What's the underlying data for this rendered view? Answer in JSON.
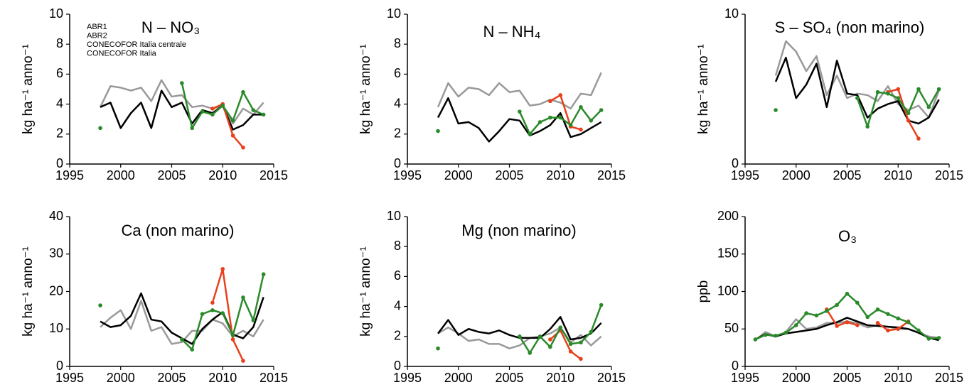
{
  "chart_data": [
    {
      "type": "line",
      "title": "N – NO₃",
      "y_label": "kg ha⁻¹ anno⁻¹",
      "legend": true,
      "x": [
        1998,
        1999,
        2000,
        2001,
        2002,
        2003,
        2004,
        2005,
        2006,
        2007,
        2008,
        2009,
        2010,
        2011,
        2012,
        2013,
        2014
      ],
      "xlim": [
        1995,
        2015
      ],
      "xticks": [
        1995,
        2000,
        2005,
        2010,
        2015
      ],
      "ylim": [
        0,
        10
      ],
      "yticks": [
        0,
        2,
        4,
        6,
        8,
        10
      ],
      "series": [
        {
          "name": "ABR1",
          "color": "#2a8a2a",
          "markers": true,
          "values": [
            2.4,
            null,
            null,
            null,
            null,
            null,
            null,
            null,
            5.4,
            2.4,
            3.5,
            3.3,
            3.9,
            2.9,
            4.8,
            3.6,
            3.3
          ]
        },
        {
          "name": "ABR2",
          "color": "#e8401c",
          "markers": true,
          "values": [
            null,
            null,
            null,
            null,
            null,
            null,
            null,
            null,
            null,
            null,
            null,
            3.7,
            4.0,
            1.9,
            1.1,
            null,
            null
          ]
        },
        {
          "name": "CONECOFOR Italia centrale",
          "color": "#000000",
          "values": [
            3.8,
            4.1,
            2.4,
            3.4,
            4.1,
            2.4,
            4.9,
            3.8,
            4.1,
            2.7,
            3.6,
            3.4,
            3.9,
            2.3,
            2.6,
            3.3,
            3.3
          ]
        },
        {
          "name": "CONECOFOR Italia",
          "color": "#999999",
          "values": [
            3.8,
            5.2,
            5.1,
            4.9,
            5.1,
            4.2,
            5.6,
            4.5,
            4.6,
            3.8,
            3.9,
            3.7,
            3.9,
            2.7,
            3.7,
            3.3,
            4.1
          ]
        }
      ]
    },
    {
      "type": "line",
      "title": "N – NH₄",
      "y_label": "kg ha⁻¹ anno⁻¹",
      "x": [
        1998,
        1999,
        2000,
        2001,
        2002,
        2003,
        2004,
        2005,
        2006,
        2007,
        2008,
        2009,
        2010,
        2011,
        2012,
        2013,
        2014
      ],
      "xlim": [
        1995,
        2015
      ],
      "xticks": [
        1995,
        2000,
        2005,
        2010,
        2015
      ],
      "ylim": [
        0,
        10
      ],
      "yticks": [
        0,
        2,
        4,
        6,
        8,
        10
      ],
      "series": [
        {
          "color": "#2a8a2a",
          "markers": true,
          "values": [
            2.2,
            null,
            null,
            null,
            null,
            null,
            null,
            null,
            3.5,
            2.0,
            2.8,
            3.1,
            3.1,
            2.6,
            3.8,
            2.9,
            3.6
          ]
        },
        {
          "color": "#e8401c",
          "markers": true,
          "values": [
            null,
            null,
            null,
            null,
            null,
            null,
            null,
            null,
            null,
            null,
            null,
            4.2,
            4.6,
            2.5,
            2.3,
            null,
            null
          ]
        },
        {
          "color": "#000000",
          "values": [
            3.1,
            4.4,
            2.7,
            2.8,
            2.4,
            1.5,
            2.2,
            3.0,
            2.9,
            1.9,
            2.2,
            2.6,
            3.4,
            1.8,
            2.0,
            2.4,
            2.8
          ]
        },
        {
          "color": "#999999",
          "values": [
            3.8,
            5.4,
            4.5,
            5.1,
            5.0,
            4.6,
            5.4,
            4.8,
            4.9,
            3.9,
            4.0,
            4.3,
            4.1,
            3.7,
            4.7,
            4.6,
            6.1
          ]
        }
      ]
    },
    {
      "type": "line",
      "title": "S – SO₄ (non marino)",
      "y_label": "kg ha⁻¹ anno⁻¹",
      "x": [
        1998,
        1999,
        2000,
        2001,
        2002,
        2003,
        2004,
        2005,
        2006,
        2007,
        2008,
        2009,
        2010,
        2011,
        2012,
        2013,
        2014
      ],
      "xlim": [
        1995,
        2015
      ],
      "xticks": [
        1995,
        2000,
        2005,
        2010,
        2015
      ],
      "ylim": [
        0,
        10
      ],
      "yticks": [
        0,
        10
      ],
      "series": [
        {
          "color": "#2a8a2a",
          "markers": true,
          "values": [
            3.6,
            null,
            null,
            null,
            null,
            null,
            null,
            null,
            4.4,
            2.5,
            4.8,
            4.7,
            4.4,
            3.4,
            5.0,
            3.8,
            5.0
          ]
        },
        {
          "color": "#e8401c",
          "markers": true,
          "values": [
            null,
            null,
            null,
            null,
            null,
            null,
            null,
            null,
            null,
            null,
            null,
            4.8,
            5.0,
            2.9,
            1.7,
            null,
            null
          ]
        },
        {
          "color": "#000000",
          "values": [
            5.5,
            7.1,
            4.4,
            5.3,
            6.7,
            3.8,
            6.9,
            4.7,
            4.6,
            3.1,
            3.7,
            4.0,
            4.2,
            2.9,
            2.7,
            3.1,
            4.3
          ]
        },
        {
          "color": "#999999",
          "values": [
            5.9,
            8.2,
            7.5,
            6.2,
            7.2,
            4.6,
            5.9,
            4.4,
            4.7,
            4.6,
            4.2,
            5.2,
            4.0,
            3.6,
            3.9,
            3.1,
            4.9
          ]
        }
      ]
    },
    {
      "type": "line",
      "title": "Ca (non marino)",
      "y_label": "kg ha⁻¹ anno⁻¹",
      "x": [
        1998,
        1999,
        2000,
        2001,
        2002,
        2003,
        2004,
        2005,
        2006,
        2007,
        2008,
        2009,
        2010,
        2011,
        2012,
        2013,
        2014
      ],
      "xlim": [
        1995,
        2015
      ],
      "xticks": [
        1995,
        2000,
        2005,
        2010,
        2015
      ],
      "ylim": [
        0,
        40
      ],
      "yticks": [
        0,
        10,
        20,
        30,
        40
      ],
      "series": [
        {
          "color": "#2a8a2a",
          "markers": true,
          "values": [
            16.3,
            null,
            null,
            null,
            null,
            null,
            null,
            null,
            7.2,
            4.5,
            14,
            15,
            14.2,
            8.3,
            18.4,
            12.3,
            24.6
          ]
        },
        {
          "color": "#e8401c",
          "markers": true,
          "values": [
            null,
            null,
            null,
            null,
            null,
            null,
            null,
            null,
            null,
            null,
            null,
            17,
            26,
            7.2,
            1.5,
            null,
            null
          ]
        },
        {
          "color": "#000000",
          "values": [
            12,
            10.5,
            11,
            13.5,
            19.5,
            12.5,
            12,
            9,
            7.5,
            6,
            10,
            12.5,
            14.5,
            8.5,
            7.5,
            10.5,
            18.5
          ]
        },
        {
          "color": "#999999",
          "values": [
            10.5,
            13,
            15,
            10,
            17.5,
            9.5,
            10.5,
            6,
            6.5,
            9.5,
            9.5,
            12.5,
            11.5,
            8,
            9.5,
            8,
            12.5
          ]
        }
      ]
    },
    {
      "type": "line",
      "title": "Mg (non marino)",
      "y_label": "kg ha⁻¹ anno⁻¹",
      "x": [
        1998,
        1999,
        2000,
        2001,
        2002,
        2003,
        2004,
        2005,
        2006,
        2007,
        2008,
        2009,
        2010,
        2011,
        2012,
        2013,
        2014
      ],
      "xlim": [
        1995,
        2015
      ],
      "xticks": [
        1995,
        2000,
        2005,
        2010,
        2015
      ],
      "ylim": [
        0,
        10
      ],
      "yticks": [
        0,
        2,
        4,
        6,
        8,
        10
      ],
      "series": [
        {
          "color": "#2a8a2a",
          "markers": true,
          "values": [
            1.2,
            null,
            null,
            null,
            null,
            null,
            null,
            null,
            2.0,
            0.9,
            2.0,
            1.3,
            2.6,
            1.5,
            1.6,
            2.3,
            4.1
          ]
        },
        {
          "color": "#e8401c",
          "markers": true,
          "values": [
            null,
            null,
            null,
            null,
            null,
            null,
            null,
            null,
            null,
            null,
            null,
            1.8,
            2.4,
            1.0,
            0.5,
            null,
            null
          ]
        },
        {
          "color": "#000000",
          "values": [
            2.2,
            3.1,
            2.1,
            2.5,
            2.3,
            2.2,
            2.4,
            2.1,
            1.9,
            1.9,
            1.9,
            2.5,
            3.3,
            1.8,
            1.9,
            2.2,
            2.9
          ]
        },
        {
          "color": "#999999",
          "values": [
            2.2,
            2.6,
            2.2,
            1.7,
            1.8,
            1.5,
            1.5,
            1.2,
            1.4,
            1.9,
            2.0,
            2.2,
            2.6,
            1.6,
            2.1,
            1.4,
            2.0
          ]
        }
      ]
    },
    {
      "type": "line",
      "title": "O₃",
      "y_label": "ppb",
      "x": [
        1996,
        1997,
        1998,
        1999,
        2000,
        2001,
        2002,
        2003,
        2004,
        2005,
        2006,
        2007,
        2008,
        2009,
        2010,
        2011,
        2012,
        2013,
        2014
      ],
      "xlim": [
        1995,
        2015
      ],
      "xticks": [
        1995,
        2000,
        2005,
        2010,
        2015
      ],
      "ylim": [
        0,
        200
      ],
      "yticks": [
        0,
        50,
        100,
        150,
        200
      ],
      "series": [
        {
          "color": "#2a8a2a",
          "markers": true,
          "values": [
            36,
            42,
            41,
            45,
            55,
            71,
            68,
            74,
            82,
            97,
            85,
            66,
            76,
            70,
            64,
            59,
            48,
            37,
            38
          ]
        },
        {
          "color": "#e8401c",
          "markers": true,
          "values": [
            null,
            null,
            null,
            null,
            null,
            null,
            null,
            76,
            54,
            59,
            55,
            null,
            58,
            48,
            50,
            60,
            null,
            null,
            null
          ]
        },
        {
          "color": "#000000",
          "values": [
            36,
            43,
            40,
            44,
            46,
            48,
            50,
            55,
            59,
            65,
            60,
            55,
            54,
            53,
            52,
            50,
            45,
            38,
            35
          ]
        },
        {
          "color": "#999999",
          "values": [
            35,
            46,
            40,
            46,
            63,
            50,
            52,
            58,
            58,
            60,
            58,
            52,
            55,
            53,
            50,
            50,
            45,
            40,
            38
          ]
        }
      ]
    }
  ]
}
